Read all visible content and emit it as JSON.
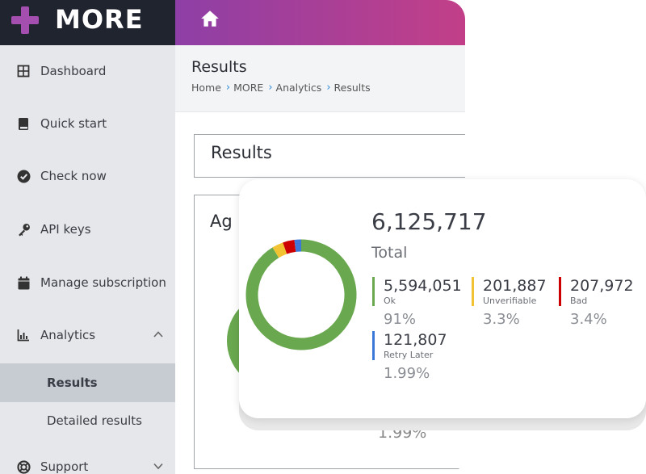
{
  "brand": {
    "name": "MORE",
    "accent": "#a44fb0"
  },
  "topbar": {
    "home_icon": "home-icon"
  },
  "sidebar": {
    "items": [
      {
        "label": "Dashboard",
        "icon": "grid-icon"
      },
      {
        "label": "Quick start",
        "icon": "book-icon"
      },
      {
        "label": "Check now",
        "icon": "check-circle-icon"
      },
      {
        "label": "API keys",
        "icon": "key-icon"
      },
      {
        "label": "Manage subscription",
        "icon": "calendar-icon"
      },
      {
        "label": "Analytics",
        "icon": "bar-chart-icon",
        "expanded": true
      },
      {
        "label": "Support",
        "icon": "lifebuoy-icon",
        "expanded": false
      }
    ],
    "analytics_sub": [
      {
        "label": "Results",
        "active": true
      },
      {
        "label": "Detailed results",
        "active": false
      }
    ]
  },
  "page": {
    "title": "Results",
    "breadcrumb": [
      "Home",
      "MORE",
      "Analytics",
      "Results"
    ]
  },
  "results_panel": {
    "title": "Results"
  },
  "aggregate_panel": {
    "title_partial": "Ag",
    "bottom_percent": "1.99%"
  },
  "summary": {
    "total": "6,125,717",
    "total_label": "Total",
    "stats": [
      {
        "value": "5,594,051",
        "label": "Ok",
        "percent": "91%",
        "color": "#6aa84f"
      },
      {
        "value": "201,887",
        "label": "Unverifiable",
        "percent": "3.3%",
        "color": "#f1c232"
      },
      {
        "value": "207,972",
        "label": "Bad",
        "percent": "3.4%",
        "color": "#cc0000"
      },
      {
        "value": "121,807",
        "label": "Retry Later",
        "percent": "1.99%",
        "color": "#3c78d8"
      }
    ]
  },
  "chart_data": {
    "type": "pie",
    "donut": true,
    "categories": [
      "Ok",
      "Unverifiable",
      "Bad",
      "Retry Later"
    ],
    "values": [
      5594051,
      201887,
      207972,
      121807
    ],
    "colors": [
      "#6aa84f",
      "#f1c232",
      "#cc0000",
      "#3c78d8"
    ]
  }
}
